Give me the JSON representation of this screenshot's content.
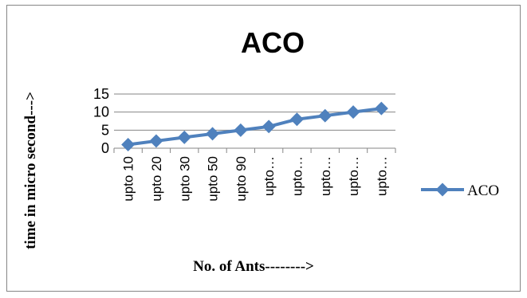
{
  "chart_data": {
    "type": "line",
    "title": "ACO",
    "xlabel": "No. of  Ants-------->",
    "ylabel": "time in micro second--->",
    "categories": [
      "upto 10",
      "upto 20",
      "upto 30",
      "upto 50",
      "upto 90",
      "upto…",
      "upto…",
      "upto…",
      "upto…",
      "upto…"
    ],
    "series": [
      {
        "name": "ACO",
        "values": [
          1,
          2,
          3,
          4,
          5,
          6,
          8,
          9,
          10,
          11
        ]
      }
    ],
    "yticks": [
      "0",
      "5",
      "10",
      "15"
    ],
    "ylim": [
      0,
      15
    ],
    "grid": true,
    "legend": "right",
    "colors": {
      "series": "#4f81bd",
      "grid": "#868686",
      "border": "#868686"
    }
  }
}
